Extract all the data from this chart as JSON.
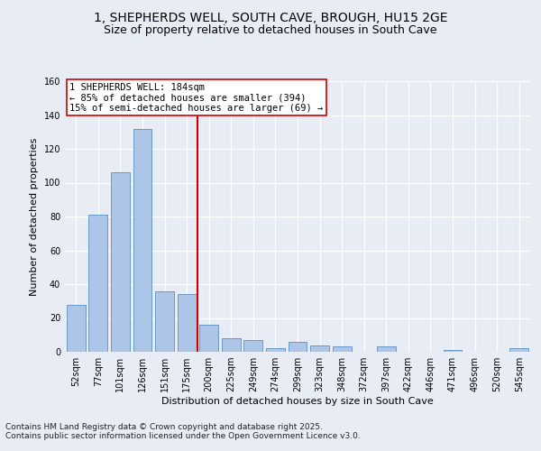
{
  "title_line1": "1, SHEPHERDS WELL, SOUTH CAVE, BROUGH, HU15 2GE",
  "title_line2": "Size of property relative to detached houses in South Cave",
  "xlabel": "Distribution of detached houses by size in South Cave",
  "ylabel": "Number of detached properties",
  "categories": [
    "52sqm",
    "77sqm",
    "101sqm",
    "126sqm",
    "151sqm",
    "175sqm",
    "200sqm",
    "225sqm",
    "249sqm",
    "274sqm",
    "299sqm",
    "323sqm",
    "348sqm",
    "372sqm",
    "397sqm",
    "422sqm",
    "446sqm",
    "471sqm",
    "496sqm",
    "520sqm",
    "545sqm"
  ],
  "values": [
    28,
    81,
    106,
    132,
    36,
    34,
    16,
    8,
    7,
    2,
    6,
    4,
    3,
    0,
    3,
    0,
    0,
    1,
    0,
    0,
    2
  ],
  "bar_color": "#adc6e8",
  "bar_edge_color": "#5a8fc0",
  "ylim": [
    0,
    160
  ],
  "yticks": [
    0,
    20,
    40,
    60,
    80,
    100,
    120,
    140,
    160
  ],
  "vline_color": "#cc0000",
  "annotation_text": "1 SHEPHERDS WELL: 184sqm\n← 85% of detached houses are smaller (394)\n15% of semi-detached houses are larger (69) →",
  "annotation_box_color": "#ffffff",
  "annotation_box_edge": "#cc0000",
  "footer_line1": "Contains HM Land Registry data © Crown copyright and database right 2025.",
  "footer_line2": "Contains public sector information licensed under the Open Government Licence v3.0.",
  "bg_color": "#e8edf5",
  "plot_bg_color": "#e8edf5",
  "grid_color": "#ffffff",
  "title_fontsize": 10,
  "subtitle_fontsize": 9,
  "axis_label_fontsize": 8,
  "tick_fontsize": 7,
  "footer_fontsize": 6.5,
  "annot_fontsize": 7.5
}
